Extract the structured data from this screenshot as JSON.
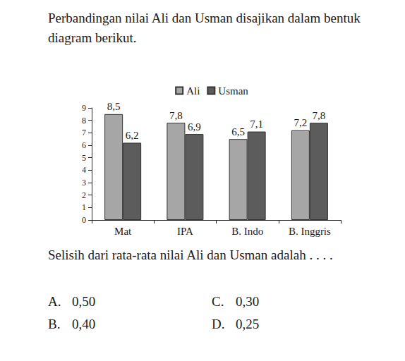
{
  "intro": "Perbandingan nilai Ali dan Usman disajikan dalam bentuk diagram berikut.",
  "question": "Selisih dari rata-rata nilai Ali dan Usman adalah . . . .",
  "options": [
    {
      "letter": "A.",
      "text": "0,50"
    },
    {
      "letter": "B.",
      "text": "0,40"
    },
    {
      "letter": "C.",
      "text": "0,30"
    },
    {
      "letter": "D.",
      "text": "0,25"
    }
  ],
  "chart_data": {
    "type": "bar",
    "categories": [
      "Mat",
      "IPA",
      "B. Indo",
      "B. Inggris"
    ],
    "series": [
      {
        "name": "Ali",
        "color": "#a6a6a6",
        "values": [
          8.5,
          7.8,
          6.5,
          7.2
        ],
        "value_labels": [
          "8,5",
          "7,8",
          "6,5",
          "7,2"
        ]
      },
      {
        "name": "Usman",
        "color": "#5c5c5c",
        "values": [
          6.2,
          6.9,
          7.1,
          7.8
        ],
        "value_labels": [
          "6,2",
          "6,9",
          "7,1",
          "7,8"
        ]
      }
    ],
    "ylim": [
      0,
      9
    ],
    "yticks": [
      0,
      1,
      2,
      3,
      4,
      5,
      6,
      7,
      8,
      9
    ],
    "grid": false,
    "legend": "top",
    "data_labels": true
  }
}
